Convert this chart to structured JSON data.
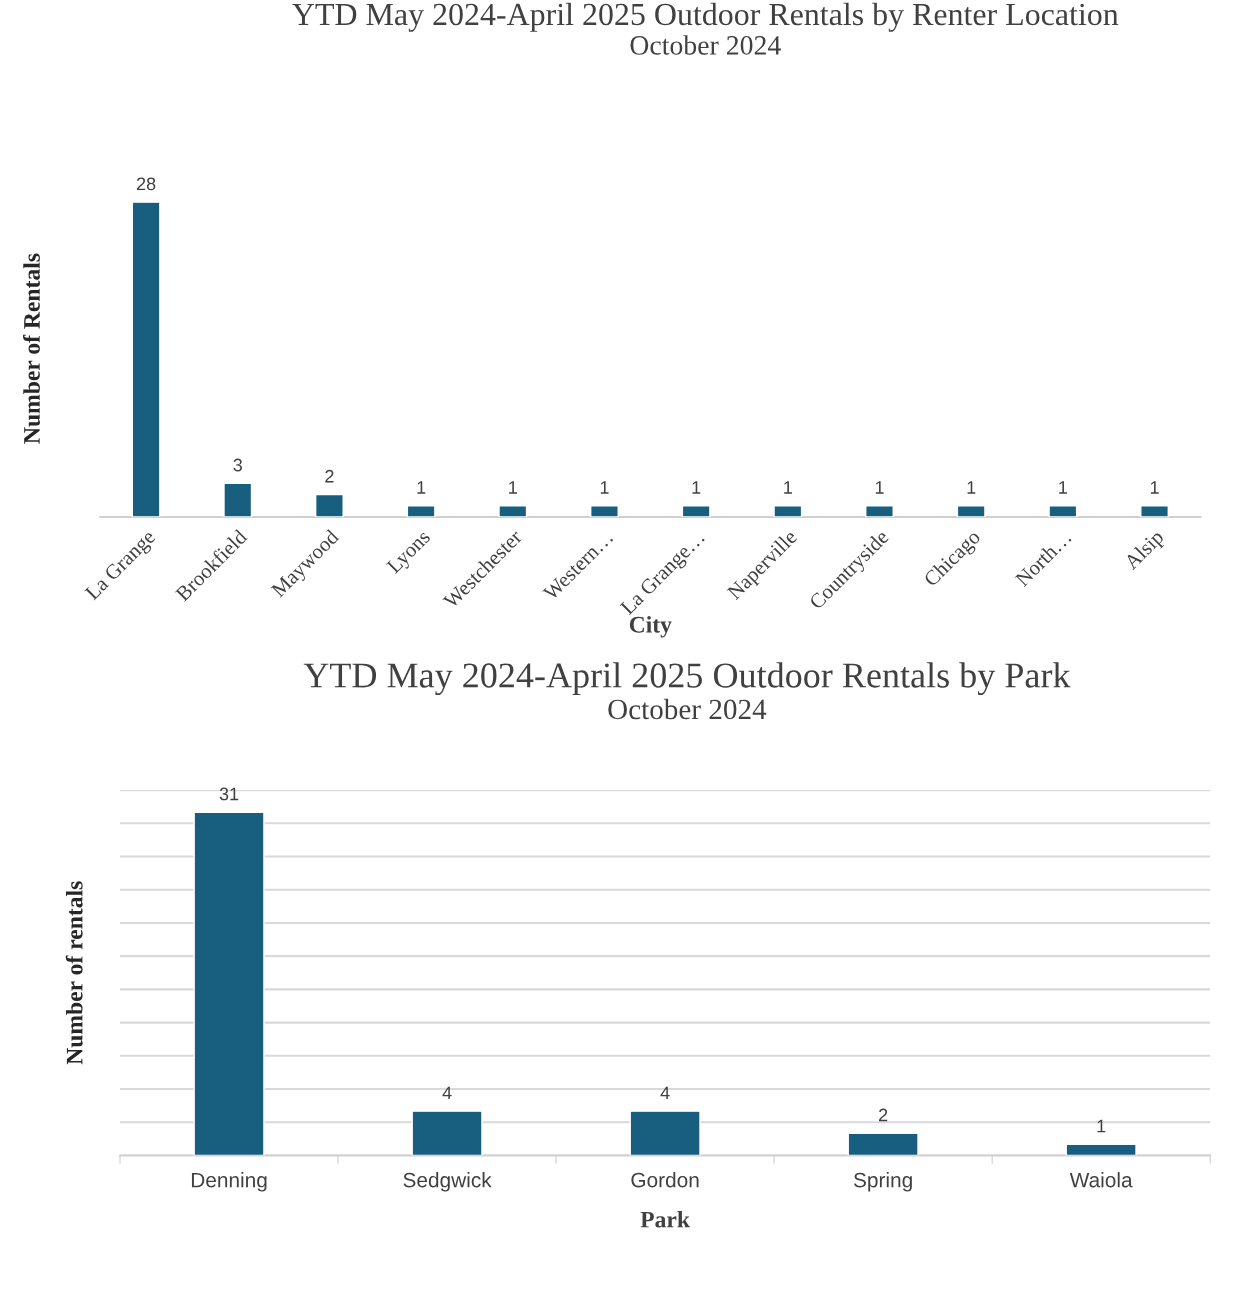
{
  "chart_data": [
    {
      "type": "bar",
      "title": "YTD May 2024-April 2025 Outdoor Rentals by Renter Location",
      "subtitle": "October 2024",
      "xlabel": "City",
      "ylabel": "Number of Rentals",
      "categories": [
        "La Grange",
        "Brookfield",
        "Maywood",
        "Lyons",
        "Westchester",
        "Western…",
        "La Grange…",
        "Naperville",
        "Countryside",
        "Chicago",
        "North…",
        "Alsip"
      ],
      "values": [
        28,
        3,
        2,
        1,
        1,
        1,
        1,
        1,
        1,
        1,
        1,
        1
      ],
      "color": "#175e7f",
      "data_labels": true,
      "grid": false,
      "tick_labels": "x"
    },
    {
      "type": "bar",
      "title": "YTD May 2024-April 2025 Outdoor Rentals by Park",
      "subtitle": "October 2024",
      "xlabel": "Park",
      "ylabel": "Number of rentals",
      "categories": [
        "Denning",
        "Sedgwick",
        "Gordon",
        "Spring",
        "Waiola"
      ],
      "values": [
        31,
        4,
        4,
        2,
        1
      ],
      "color": "#175e7f",
      "data_labels": true,
      "grid": "y",
      "ylim": [
        0,
        33
      ],
      "yticks": [
        {
          "value": 0,
          "label": null
        },
        {
          "value": 3,
          "label": null
        },
        {
          "value": 6,
          "label": null
        },
        {
          "value": 9,
          "label": null
        },
        {
          "value": 12,
          "label": null
        },
        {
          "value": 15,
          "label": null
        },
        {
          "value": 18,
          "label": null
        },
        {
          "value": 21,
          "label": null
        },
        {
          "value": 24,
          "label": null
        },
        {
          "value": 27,
          "label": null
        },
        {
          "value": 30,
          "label": null
        },
        {
          "value": 33,
          "label": null
        }
      ],
      "tick_labels": "x"
    }
  ]
}
